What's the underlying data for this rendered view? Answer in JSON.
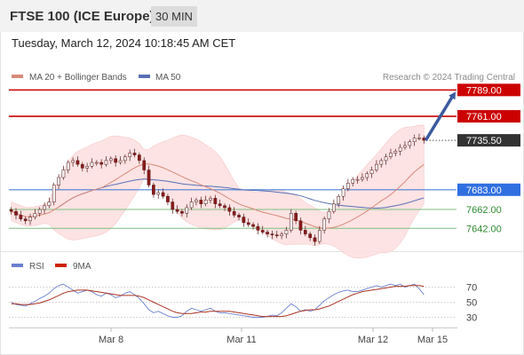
{
  "header": {
    "title": "FTSE 100 (ICE Europe)",
    "timeframe": "30 MIN",
    "datetime": "Tuesday, March 12, 2024 10:18:45 AM CET"
  },
  "legend": {
    "ma20": "MA 20 + Bollinger Bands",
    "ma50": "MA 50",
    "credit": "Research © 2024 Trading Central"
  },
  "rsi_legend": {
    "rsi": "RSI",
    "ma": "9MA"
  },
  "colors": {
    "resistance": "#cc0000",
    "pivot": "#4a7fd4",
    "support": "#2e8b2e",
    "current": "#333333",
    "bollinger_fill": "#fde0e0",
    "ma20": "#d88a7a",
    "ma50": "#5a6fb8",
    "arrow": "#3a5a9e",
    "candle_up": "#f2f2f2",
    "candle_down": "#8b1a1a"
  },
  "chart_data": [
    {
      "type": "candlestick",
      "title": "FTSE 100 (ICE Europe) 30 MIN",
      "ylim": [
        7630,
        7795
      ],
      "x_ticks": [
        "Mar 8",
        "Mar 11",
        "Mar 12",
        "Mar 15"
      ],
      "levels": [
        {
          "label": "7789.00",
          "value": 7789.0,
          "kind": "resistance"
        },
        {
          "label": "7761.00",
          "value": 7761.0,
          "kind": "resistance"
        },
        {
          "label": "7735.50",
          "value": 7735.5,
          "kind": "current"
        },
        {
          "label": "7683.00",
          "value": 7683.0,
          "kind": "pivot"
        },
        {
          "label": "7662.00",
          "value": 7662.0,
          "kind": "support"
        },
        {
          "label": "7642.00",
          "value": 7642.0,
          "kind": "support"
        }
      ],
      "close": [
        7660,
        7656,
        7652,
        7650,
        7654,
        7658,
        7662,
        7666,
        7670,
        7688,
        7696,
        7704,
        7712,
        7714,
        7710,
        7706,
        7708,
        7712,
        7712,
        7710,
        7714,
        7716,
        7712,
        7714,
        7718,
        7722,
        7720,
        7714,
        7704,
        7688,
        7678,
        7680,
        7676,
        7670,
        7662,
        7660,
        7658,
        7664,
        7670,
        7672,
        7668,
        7672,
        7674,
        7668,
        7666,
        7664,
        7660,
        7656,
        7654,
        7648,
        7646,
        7644,
        7640,
        7638,
        7636,
        7635,
        7634,
        7636,
        7640,
        7658,
        7650,
        7640,
        7636,
        7632,
        7628,
        7640,
        7652,
        7660,
        7668,
        7676,
        7684,
        7690,
        7694,
        7694,
        7696,
        7700,
        7704,
        7710,
        7714,
        7718,
        7722,
        7724,
        7728,
        7730,
        7734,
        7738,
        7738,
        7735.5
      ],
      "rsi": {
        "ylim": [
          20,
          80
        ],
        "levels": [
          70,
          50,
          30
        ],
        "rsi_values": [
          50,
          47,
          46,
          45,
          48,
          51,
          55,
          58,
          62,
          68,
          72,
          74,
          70,
          66,
          62,
          64,
          66,
          64,
          60,
          58,
          62,
          60,
          56,
          58,
          62,
          64,
          60,
          55,
          48,
          40,
          36,
          38,
          35,
          32,
          30,
          30,
          32,
          38,
          42,
          40,
          38,
          40,
          42,
          38,
          36,
          36,
          35,
          34,
          33,
          32,
          31,
          30,
          30,
          30,
          31,
          33,
          32,
          36,
          42,
          48,
          44,
          38,
          40,
          38,
          40,
          46,
          52,
          56,
          60,
          63,
          65,
          66,
          64,
          64,
          66,
          68,
          70,
          72,
          70,
          72,
          74,
          72,
          74,
          70,
          72,
          74,
          68,
          60
        ],
        "ma_values": [
          48,
          48,
          47,
          47,
          47,
          48,
          49,
          51,
          53,
          56,
          59,
          62,
          64,
          65,
          66,
          66,
          66,
          65,
          64,
          63,
          62,
          61,
          60,
          59,
          59,
          59,
          59,
          58,
          56,
          53,
          50,
          47,
          44,
          41,
          38,
          36,
          35,
          35,
          35,
          36,
          37,
          37,
          38,
          38,
          38,
          38,
          38,
          37,
          36,
          35,
          34,
          33,
          32,
          31,
          31,
          31,
          31,
          31,
          32,
          34,
          36,
          38,
          39,
          40,
          40,
          41,
          43,
          45,
          48,
          51,
          54,
          57,
          60,
          62,
          64,
          65,
          66,
          67,
          68,
          69,
          70,
          71,
          71,
          71,
          72,
          72,
          72,
          71
        ]
      }
    }
  ]
}
